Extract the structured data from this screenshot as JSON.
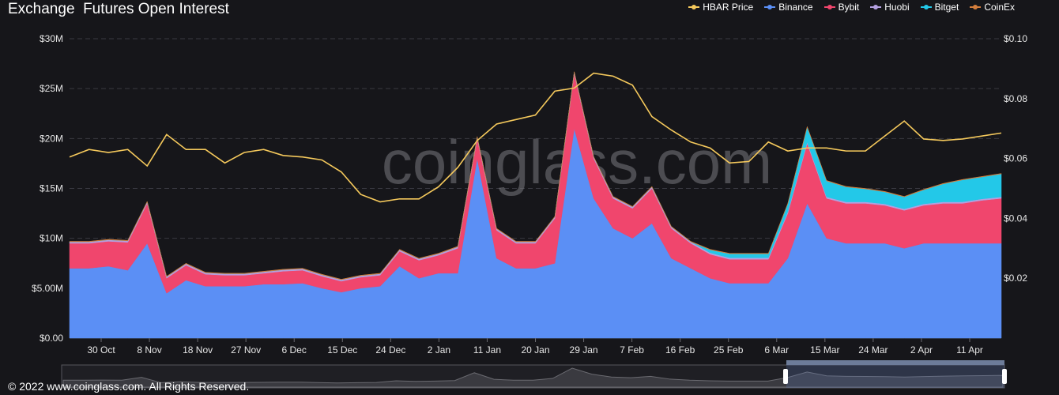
{
  "header": {
    "title": "Exchange  Futures Open Interest"
  },
  "footer": {
    "copyright": "© 2022 www.coinglass.com. All Rights Reserved."
  },
  "watermark": "coinglass.com",
  "chart_data": {
    "type": "area",
    "title": "Exchange  Futures Open Interest",
    "legend_position": "top-right",
    "grid": true,
    "y_left": {
      "ticks": [
        "$0.00",
        "$5.00M",
        "$10M",
        "$15M",
        "$20M",
        "$25M",
        "$30M"
      ],
      "range": [
        0,
        30000000
      ]
    },
    "y_right": {
      "ticks": [
        "$0.02",
        "$0.04",
        "$0.06",
        "$0.08",
        "$0.10"
      ],
      "range": [
        0,
        0.1
      ]
    },
    "x_ticks": [
      "30 Oct",
      "8 Nov",
      "18 Nov",
      "27 Nov",
      "6 Dec",
      "15 Dec",
      "24 Dec",
      "2 Jan",
      "11 Jan",
      "20 Jan",
      "29 Jan",
      "7 Feb",
      "16 Feb",
      "25 Feb",
      "6 Mar",
      "15 Mar",
      "24 Mar",
      "2 Apr",
      "11 Apr"
    ],
    "series": [
      {
        "name": "HBAR Price",
        "color": "#f5c95c",
        "axis": "right",
        "kind": "line",
        "values": [
          0.0605,
          0.063,
          0.062,
          0.063,
          0.0575,
          0.068,
          0.063,
          0.063,
          0.0585,
          0.062,
          0.063,
          0.061,
          0.0605,
          0.0595,
          0.0555,
          0.048,
          0.0455,
          0.0465,
          0.0465,
          0.0505,
          0.057,
          0.066,
          0.0715,
          0.073,
          0.0745,
          0.0825,
          0.0835,
          0.0885,
          0.0875,
          0.0845,
          0.074,
          0.0695,
          0.0655,
          0.0635,
          0.0585,
          0.059,
          0.0655,
          0.0625,
          0.0635,
          0.0635,
          0.0625,
          0.0625,
          0.0675,
          0.0725,
          0.0665,
          0.066,
          0.0665,
          0.0675,
          0.0685
        ]
      },
      {
        "name": "Binance",
        "color": "#5b8ff5",
        "axis": "left",
        "kind": "area",
        "values": [
          7000000,
          7000000,
          7200000,
          6800000,
          9500000,
          4500000,
          5800000,
          5200000,
          5200000,
          5200000,
          5400000,
          5400000,
          5500000,
          5000000,
          4600000,
          5000000,
          5200000,
          7200000,
          6000000,
          6500000,
          6500000,
          18000000,
          8000000,
          7000000,
          7000000,
          7500000,
          21000000,
          14000000,
          11000000,
          10000000,
          11500000,
          8000000,
          7000000,
          6000000,
          5500000,
          5500000,
          5500000,
          8000000,
          13500000,
          10000000,
          9500000,
          9500000,
          9500000,
          9000000,
          9500000,
          9500000,
          9500000,
          9500000,
          9500000
        ]
      },
      {
        "name": "Bybit",
        "color": "#f0466d",
        "axis": "left",
        "kind": "area",
        "values": [
          2500000,
          2500000,
          2500000,
          2800000,
          4000000,
          1500000,
          1500000,
          1200000,
          1100000,
          1100000,
          1100000,
          1300000,
          1300000,
          1200000,
          1100000,
          1100000,
          1100000,
          1500000,
          1800000,
          1800000,
          2500000,
          2000000,
          2800000,
          2500000,
          2500000,
          4500000,
          5500000,
          4000000,
          3000000,
          3000000,
          3500000,
          3000000,
          2500000,
          2400000,
          2400000,
          2400000,
          2400000,
          4500000,
          6000000,
          4000000,
          4000000,
          4000000,
          3800000,
          3800000,
          3800000,
          4000000,
          4000000,
          4300000,
          4500000
        ]
      },
      {
        "name": "Huobi",
        "color": "#b4a0e0",
        "axis": "left",
        "kind": "area",
        "values": [
          150000,
          150000,
          150000,
          150000,
          150000,
          150000,
          150000,
          150000,
          150000,
          150000,
          150000,
          150000,
          150000,
          150000,
          150000,
          150000,
          150000,
          150000,
          150000,
          150000,
          150000,
          150000,
          150000,
          150000,
          150000,
          150000,
          150000,
          150000,
          150000,
          150000,
          150000,
          150000,
          150000,
          150000,
          150000,
          150000,
          150000,
          150000,
          150000,
          150000,
          150000,
          150000,
          150000,
          150000,
          150000,
          150000,
          150000,
          150000,
          150000
        ]
      },
      {
        "name": "Bitget",
        "color": "#23c8e8",
        "axis": "left",
        "kind": "area",
        "values": [
          0,
          0,
          0,
          0,
          0,
          0,
          0,
          0,
          0,
          0,
          0,
          0,
          0,
          0,
          0,
          0,
          0,
          0,
          0,
          0,
          0,
          0,
          0,
          0,
          0,
          0,
          0,
          0,
          0,
          0,
          0,
          0,
          0,
          300000,
          400000,
          400000,
          400000,
          800000,
          1500000,
          1600000,
          1500000,
          1300000,
          1200000,
          1200000,
          1400000,
          1800000,
          2200000,
          2200000,
          2300000
        ]
      },
      {
        "name": "CoinEx",
        "color": "#d27d3c",
        "axis": "left",
        "kind": "area",
        "values": [
          50000,
          50000,
          50000,
          50000,
          50000,
          50000,
          50000,
          50000,
          50000,
          50000,
          50000,
          50000,
          50000,
          50000,
          50000,
          50000,
          50000,
          50000,
          50000,
          50000,
          50000,
          50000,
          50000,
          50000,
          50000,
          50000,
          50000,
          50000,
          50000,
          50000,
          50000,
          50000,
          50000,
          50000,
          50000,
          50000,
          50000,
          50000,
          50000,
          50000,
          50000,
          50000,
          50000,
          50000,
          50000,
          50000,
          50000,
          50000,
          50000
        ]
      }
    ]
  }
}
